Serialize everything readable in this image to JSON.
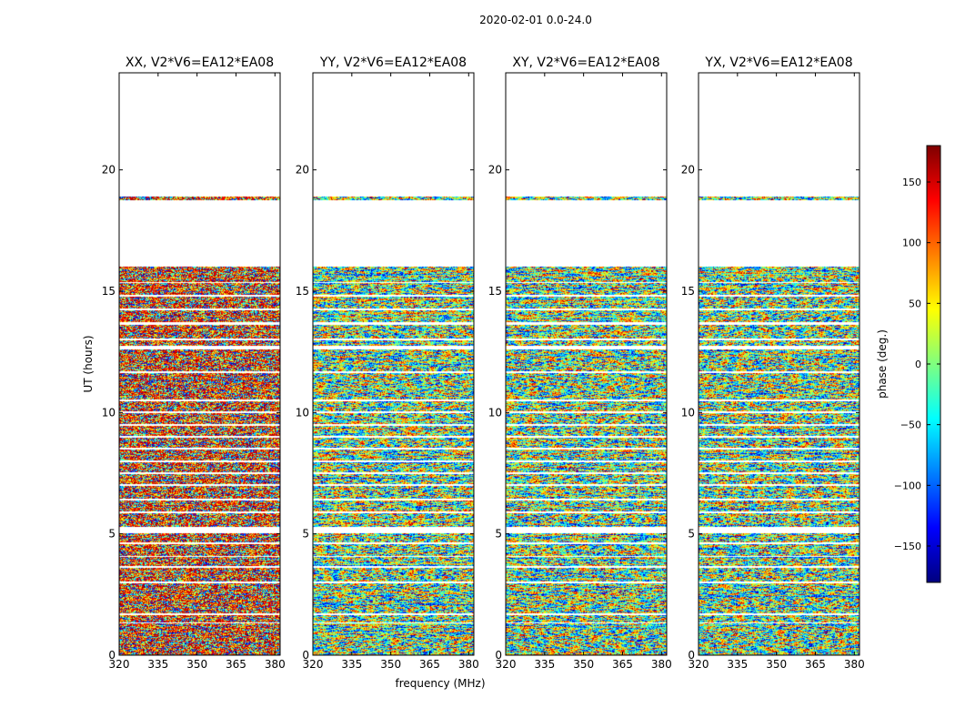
{
  "chart_data": {
    "type": "heatmap",
    "suptitle": "2020-02-01 0.0-24.0",
    "xlabel": "frequency (MHz)",
    "ylabel": "UT (hours)",
    "xlim": [
      320,
      382
    ],
    "ylim": [
      0,
      24
    ],
    "xticks": [
      320,
      335,
      350,
      365,
      380
    ],
    "yticks": [
      0,
      5,
      10,
      15,
      20
    ],
    "panels": [
      {
        "title": "XX, V2*V6=EA12*EA08",
        "seed": 11,
        "warm": 0.35
      },
      {
        "title": "YY, V2*V6=EA12*EA08",
        "seed": 23,
        "warm": 0.0
      },
      {
        "title": "XY, V2*V6=EA12*EA08",
        "seed": 37,
        "warm": 0.0
      },
      {
        "title": "YX, V2*V6=EA12*EA08",
        "seed": 51,
        "warm": 0.0
      }
    ],
    "data_segments_hours": [
      [
        0.0,
        0.28
      ],
      [
        0.33,
        1.3
      ],
      [
        1.38,
        1.62
      ],
      [
        1.75,
        2.95
      ],
      [
        3.05,
        3.6
      ],
      [
        3.7,
        4.05
      ],
      [
        4.1,
        4.55
      ],
      [
        4.65,
        5.0
      ],
      [
        5.3,
        5.85
      ],
      [
        5.95,
        6.35
      ],
      [
        6.45,
        6.95
      ],
      [
        7.05,
        7.45
      ],
      [
        7.55,
        7.95
      ],
      [
        8.05,
        8.45
      ],
      [
        8.55,
        8.95
      ],
      [
        9.05,
        9.45
      ],
      [
        9.55,
        9.95
      ],
      [
        10.05,
        10.45
      ],
      [
        10.55,
        11.6
      ],
      [
        11.7,
        12.6
      ],
      [
        12.75,
        12.95
      ],
      [
        13.05,
        13.6
      ],
      [
        13.75,
        14.2
      ],
      [
        14.3,
        14.75
      ],
      [
        14.85,
        15.3
      ],
      [
        15.4,
        16.0
      ],
      [
        18.75,
        18.9
      ]
    ],
    "colorbar": {
      "label": "phase (deg.)",
      "range": [
        -180,
        180
      ],
      "ticks": [
        150,
        100,
        50,
        0,
        -50,
        -100,
        -150
      ],
      "tick_labels": [
        "150",
        "100",
        "50",
        "0",
        "−50",
        "−100",
        "−150"
      ],
      "colormap": "jet"
    }
  }
}
